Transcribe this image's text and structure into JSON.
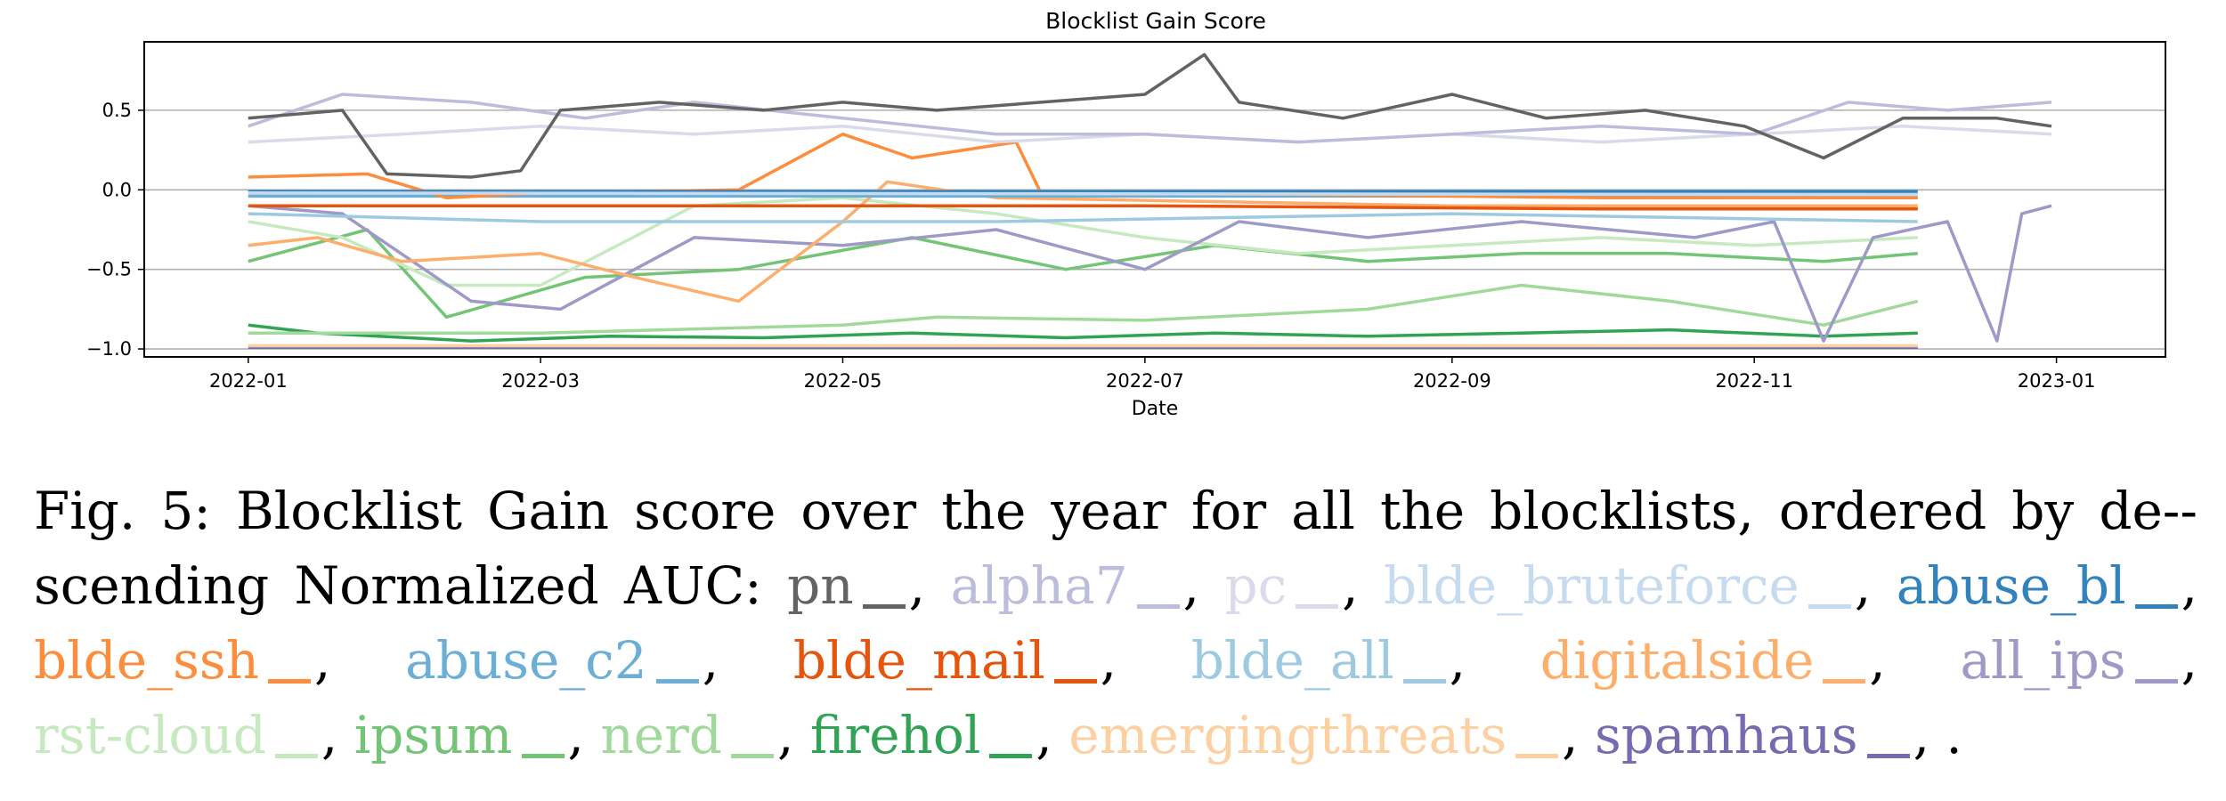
{
  "figure": {
    "caption_prefix": "Fig. 5: Blocklist Gain score over the year for all the blocklists, ordered by de-­scending Normalized AUC:",
    "caption_end": ", ."
  },
  "chart_data": {
    "type": "line",
    "title": "Blocklist Gain Score",
    "xlabel": "Date",
    "ylabel": "",
    "xlim": [
      "2021-12-11",
      "2023-01-23"
    ],
    "ylim": [
      -1.05,
      0.93
    ],
    "xticks": [
      "2022-01",
      "2022-03",
      "2022-05",
      "2022-07",
      "2022-09",
      "2022-11",
      "2023-01"
    ],
    "yticks": [
      -1.0,
      -0.5,
      0.0,
      0.5
    ],
    "ytick_labels": [
      "−1.0",
      "−0.5",
      "0.0",
      "0.5"
    ],
    "grid": "horizontal",
    "legend": "in caption",
    "series": [
      {
        "name": "pn",
        "color": "#636363",
        "x": [
          "2022-01-01",
          "2022-01-20",
          "2022-01-29",
          "2022-02-15",
          "2022-02-25",
          "2022-03-05",
          "2022-03-25",
          "2022-04-15",
          "2022-05-01",
          "2022-05-20",
          "2022-06-10",
          "2022-07-01",
          "2022-07-13",
          "2022-07-20",
          "2022-08-10",
          "2022-09-01",
          "2022-09-20",
          "2022-10-10",
          "2022-10-30",
          "2022-11-15",
          "2022-12-01",
          "2022-12-20",
          "2022-12-31"
        ],
        "values": [
          0.45,
          0.5,
          0.1,
          0.08,
          0.12,
          0.5,
          0.55,
          0.5,
          0.55,
          0.5,
          0.55,
          0.6,
          0.85,
          0.55,
          0.45,
          0.6,
          0.45,
          0.5,
          0.4,
          0.2,
          0.45,
          0.45,
          0.4
        ]
      },
      {
        "name": "alpha7",
        "color": "#bcbddc",
        "x": [
          "2022-01-01",
          "2022-01-20",
          "2022-02-15",
          "2022-03-10",
          "2022-04-01",
          "2022-05-01",
          "2022-06-01",
          "2022-07-01",
          "2022-08-01",
          "2022-09-01",
          "2022-10-01",
          "2022-11-01",
          "2022-11-20",
          "2022-12-10",
          "2022-12-31"
        ],
        "values": [
          0.4,
          0.6,
          0.55,
          0.45,
          0.55,
          0.45,
          0.35,
          0.35,
          0.3,
          0.35,
          0.4,
          0.35,
          0.55,
          0.5,
          0.55
        ]
      },
      {
        "name": "pc",
        "color": "#dadaeb",
        "x": [
          "2022-01-01",
          "2022-02-01",
          "2022-03-01",
          "2022-04-01",
          "2022-05-01",
          "2022-06-01",
          "2022-07-01",
          "2022-08-01",
          "2022-09-01",
          "2022-10-01",
          "2022-11-01",
          "2022-12-01",
          "2022-12-31"
        ],
        "values": [
          0.3,
          0.35,
          0.4,
          0.35,
          0.4,
          0.3,
          0.35,
          0.3,
          0.35,
          0.3,
          0.35,
          0.4,
          0.35
        ]
      },
      {
        "name": "blde_bruteforce",
        "color": "#c6dbef",
        "x": [
          "2022-01-01",
          "2022-12-04"
        ],
        "values": [
          -0.02,
          -0.03
        ]
      },
      {
        "name": "abuse_bl",
        "color": "#3182bd",
        "x": [
          "2022-01-01",
          "2022-12-04"
        ],
        "values": [
          -0.01,
          -0.01
        ]
      },
      {
        "name": "blde_ssh",
        "color": "#fd8d3c",
        "x": [
          "2022-01-01",
          "2022-01-25",
          "2022-02-10",
          "2022-03-01",
          "2022-04-10",
          "2022-05-01",
          "2022-05-15",
          "2022-06-05",
          "2022-06-10",
          "2022-08-01",
          "2022-10-01",
          "2022-12-04"
        ],
        "values": [
          0.08,
          0.1,
          -0.05,
          -0.02,
          0.0,
          0.35,
          0.2,
          0.3,
          -0.02,
          -0.03,
          -0.05,
          -0.05
        ]
      },
      {
        "name": "abuse_c2",
        "color": "#6baed6",
        "x": [
          "2022-01-01",
          "2022-12-04"
        ],
        "values": [
          -0.04,
          -0.04
        ]
      },
      {
        "name": "blde_mail",
        "color": "#e6550d",
        "x": [
          "2022-01-01",
          "2022-04-01",
          "2022-07-01",
          "2022-10-01",
          "2022-12-04"
        ],
        "values": [
          -0.1,
          -0.1,
          -0.1,
          -0.12,
          -0.12
        ]
      },
      {
        "name": "blde_all",
        "color": "#9ecae1",
        "x": [
          "2022-01-01",
          "2022-03-01",
          "2022-06-01",
          "2022-09-01",
          "2022-12-04"
        ],
        "values": [
          -0.15,
          -0.2,
          -0.2,
          -0.15,
          -0.2
        ]
      },
      {
        "name": "digitalside",
        "color": "#fdae6b",
        "x": [
          "2022-01-01",
          "2022-01-15",
          "2022-02-01",
          "2022-03-01",
          "2022-03-20",
          "2022-04-10",
          "2022-05-01",
          "2022-05-10",
          "2022-06-01",
          "2022-09-01",
          "2022-12-04"
        ],
        "values": [
          -0.35,
          -0.3,
          -0.45,
          -0.4,
          -0.55,
          -0.7,
          -0.2,
          0.05,
          -0.05,
          -0.1,
          -0.1
        ]
      },
      {
        "name": "all_ips",
        "color": "#9e9ac8",
        "x": [
          "2022-01-01",
          "2022-01-20",
          "2022-02-15",
          "2022-03-05",
          "2022-04-01",
          "2022-05-01",
          "2022-06-01",
          "2022-07-01",
          "2022-07-20",
          "2022-08-15",
          "2022-09-15",
          "2022-10-20",
          "2022-11-05",
          "2022-11-15",
          "2022-11-25",
          "2022-12-10",
          "2022-12-20",
          "2022-12-25",
          "2022-12-31"
        ],
        "values": [
          -0.1,
          -0.15,
          -0.7,
          -0.75,
          -0.3,
          -0.35,
          -0.25,
          -0.5,
          -0.2,
          -0.3,
          -0.2,
          -0.3,
          -0.2,
          -0.95,
          -0.3,
          -0.2,
          -0.95,
          -0.15,
          -0.1
        ]
      },
      {
        "name": "rst-cloud",
        "color": "#c7e9c0",
        "x": [
          "2022-01-01",
          "2022-01-20",
          "2022-02-10",
          "2022-03-01",
          "2022-04-01",
          "2022-05-01",
          "2022-06-01",
          "2022-07-01",
          "2022-08-01",
          "2022-09-01",
          "2022-10-01",
          "2022-11-01",
          "2022-12-04"
        ],
        "values": [
          -0.2,
          -0.3,
          -0.6,
          -0.6,
          -0.1,
          -0.05,
          -0.15,
          -0.3,
          -0.4,
          -0.35,
          -0.3,
          -0.35,
          -0.3
        ]
      },
      {
        "name": "ipsum",
        "color": "#74c476",
        "x": [
          "2022-01-01",
          "2022-01-25",
          "2022-02-10",
          "2022-03-10",
          "2022-04-10",
          "2022-05-15",
          "2022-06-15",
          "2022-07-15",
          "2022-08-15",
          "2022-09-15",
          "2022-10-15",
          "2022-11-15",
          "2022-12-04"
        ],
        "values": [
          -0.45,
          -0.25,
          -0.8,
          -0.55,
          -0.5,
          -0.3,
          -0.5,
          -0.35,
          -0.45,
          -0.4,
          -0.4,
          -0.45,
          -0.4
        ]
      },
      {
        "name": "nerd",
        "color": "#a1d99b",
        "x": [
          "2022-01-01",
          "2022-03-01",
          "2022-05-01",
          "2022-05-20",
          "2022-07-01",
          "2022-08-15",
          "2022-09-15",
          "2022-10-15",
          "2022-11-15",
          "2022-12-04"
        ],
        "values": [
          -0.9,
          -0.9,
          -0.85,
          -0.8,
          -0.82,
          -0.75,
          -0.6,
          -0.7,
          -0.85,
          -0.7
        ]
      },
      {
        "name": "firehol",
        "color": "#31a354",
        "x": [
          "2022-01-01",
          "2022-01-15",
          "2022-02-15",
          "2022-03-15",
          "2022-04-15",
          "2022-05-15",
          "2022-06-15",
          "2022-07-15",
          "2022-08-15",
          "2022-09-15",
          "2022-10-15",
          "2022-11-15",
          "2022-12-04"
        ],
        "values": [
          -0.85,
          -0.9,
          -0.95,
          -0.92,
          -0.93,
          -0.9,
          -0.93,
          -0.9,
          -0.92,
          -0.9,
          -0.88,
          -0.92,
          -0.9
        ]
      },
      {
        "name": "emergingthreats",
        "color": "#fdd0a2",
        "x": [
          "2022-01-01",
          "2022-12-04"
        ],
        "values": [
          -0.98,
          -0.98
        ]
      },
      {
        "name": "spamhaus",
        "color": "#756bb1",
        "x": [
          "2022-01-01",
          "2022-12-04"
        ],
        "values": [
          -0.99,
          -0.99
        ]
      }
    ]
  }
}
